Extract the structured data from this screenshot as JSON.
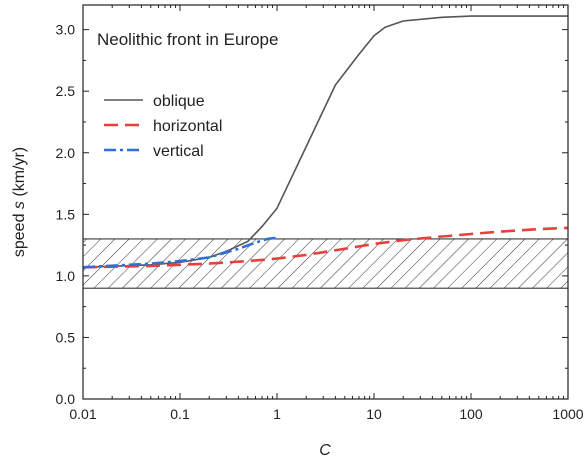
{
  "chart_data": {
    "type": "line",
    "title": "Neolithic front in Europe",
    "xlabel": "C",
    "ylabel_prefix": "speed ",
    "ylabel_symbol": "s",
    "ylabel_suffix": " (km/yr)",
    "xscale": "log",
    "xlim": [
      0.01,
      1000
    ],
    "ylim": [
      0.0,
      3.2
    ],
    "x_ticks": [
      0.01,
      0.1,
      1,
      10,
      100,
      1000
    ],
    "x_tick_labels": [
      "0.01",
      "0.1",
      "1",
      "10",
      "100",
      "1000"
    ],
    "y_ticks": [
      0.0,
      0.5,
      1.0,
      1.5,
      2.0,
      2.5,
      3.0
    ],
    "y_tick_labels": [
      "0.0",
      "0.5",
      "1.0",
      "1.5",
      "2.0",
      "2.5",
      "3.0"
    ],
    "grid": false,
    "legend_position": "top-left",
    "band": {
      "y_min": 0.9,
      "y_max": 1.3,
      "pattern": "hatched"
    },
    "series": [
      {
        "name": "oblique",
        "color": "#555555",
        "dash": "solid",
        "x": [
          0.01,
          0.05,
          0.1,
          0.2,
          0.3,
          0.5,
          0.7,
          1,
          2,
          4,
          7,
          10,
          13,
          20,
          50,
          100,
          200,
          500,
          1000
        ],
        "y": [
          1.07,
          1.09,
          1.11,
          1.15,
          1.2,
          1.28,
          1.4,
          1.55,
          2.05,
          2.55,
          2.8,
          2.95,
          3.02,
          3.07,
          3.1,
          3.11,
          3.11,
          3.11,
          3.11
        ]
      },
      {
        "name": "horizontal",
        "color": "#e8413d",
        "dash": "dashed",
        "x": [
          0.01,
          0.05,
          0.1,
          0.2,
          0.5,
          1,
          2,
          5,
          10,
          20,
          50,
          100,
          200,
          500,
          1000
        ],
        "y": [
          1.07,
          1.08,
          1.09,
          1.1,
          1.12,
          1.14,
          1.17,
          1.22,
          1.26,
          1.29,
          1.32,
          1.34,
          1.36,
          1.38,
          1.39
        ]
      },
      {
        "name": "vertical",
        "color": "#2f6fd8",
        "dash": "dashdot",
        "x": [
          0.01,
          0.05,
          0.1,
          0.2,
          0.4,
          0.6,
          0.8,
          1
        ],
        "y": [
          1.07,
          1.1,
          1.12,
          1.15,
          1.22,
          1.27,
          1.3,
          1.31
        ]
      }
    ]
  }
}
